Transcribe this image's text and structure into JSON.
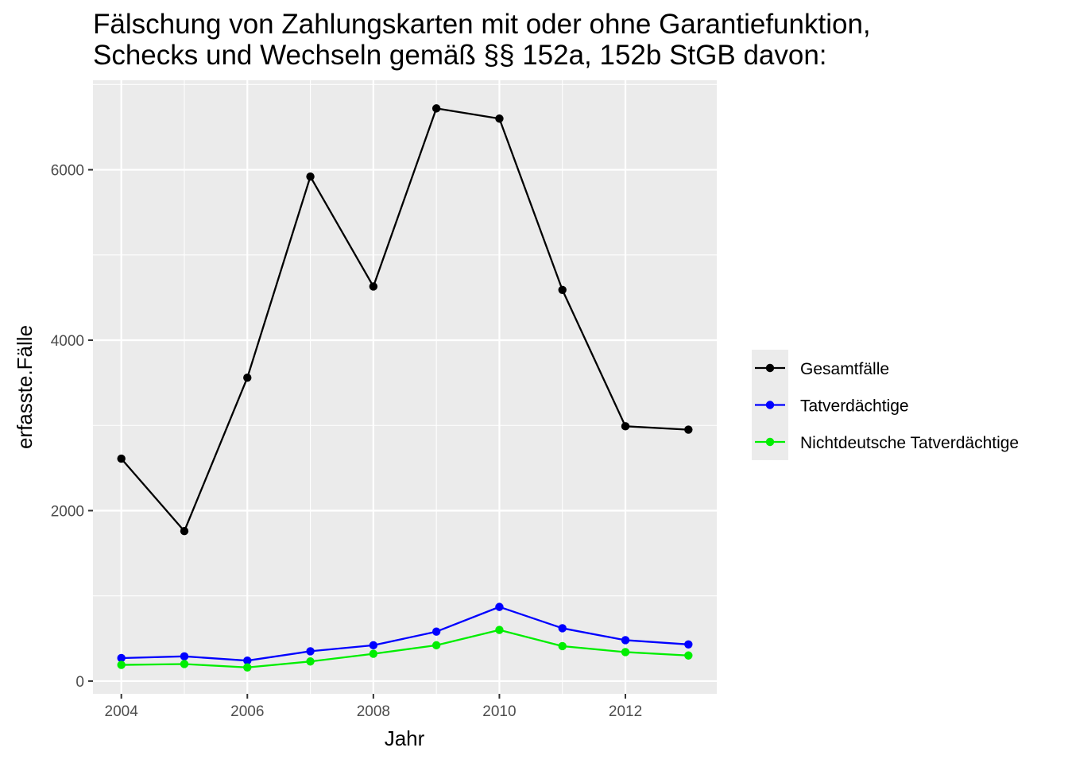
{
  "chart_data": {
    "type": "line",
    "title_lines": [
      "Fälschung von Zahlungskarten mit oder ohne Garantiefunktion,",
      "Schecks und Wechseln gemäß §§ 152a, 152b StGB davon:"
    ],
    "xlabel": "Jahr",
    "ylabel": "erfasste.Fälle",
    "x": [
      2004,
      2005,
      2006,
      2007,
      2008,
      2009,
      2010,
      2011,
      2012,
      2013
    ],
    "xlim": [
      2003.55,
      2013.45
    ],
    "ylim": [
      -150,
      7050
    ],
    "x_ticks": [
      2004,
      2006,
      2008,
      2010,
      2012
    ],
    "x_tick_labels": [
      "2004",
      "2006",
      "2008",
      "2010",
      "2012"
    ],
    "y_ticks": [
      0,
      2000,
      4000,
      6000
    ],
    "y_tick_labels": [
      "0",
      "2000",
      "4000",
      "6000"
    ],
    "y_minor_ticks": [
      1000,
      3000,
      5000,
      7000
    ],
    "grid": true,
    "legend_position": "right",
    "series": [
      {
        "name": "Gesamtfälle",
        "color": "#000000",
        "values": [
          2610,
          1760,
          3560,
          5920,
          4630,
          6720,
          6600,
          4590,
          2990,
          2950
        ]
      },
      {
        "name": "Tatverdächtige",
        "color": "#0000ff",
        "values": [
          270,
          290,
          240,
          350,
          420,
          580,
          870,
          620,
          480,
          430
        ]
      },
      {
        "name": "Nichtdeutsche Tatverdächtige",
        "color": "#00ee00",
        "values": [
          190,
          200,
          160,
          230,
          320,
          420,
          600,
          410,
          340,
          300
        ]
      }
    ]
  }
}
